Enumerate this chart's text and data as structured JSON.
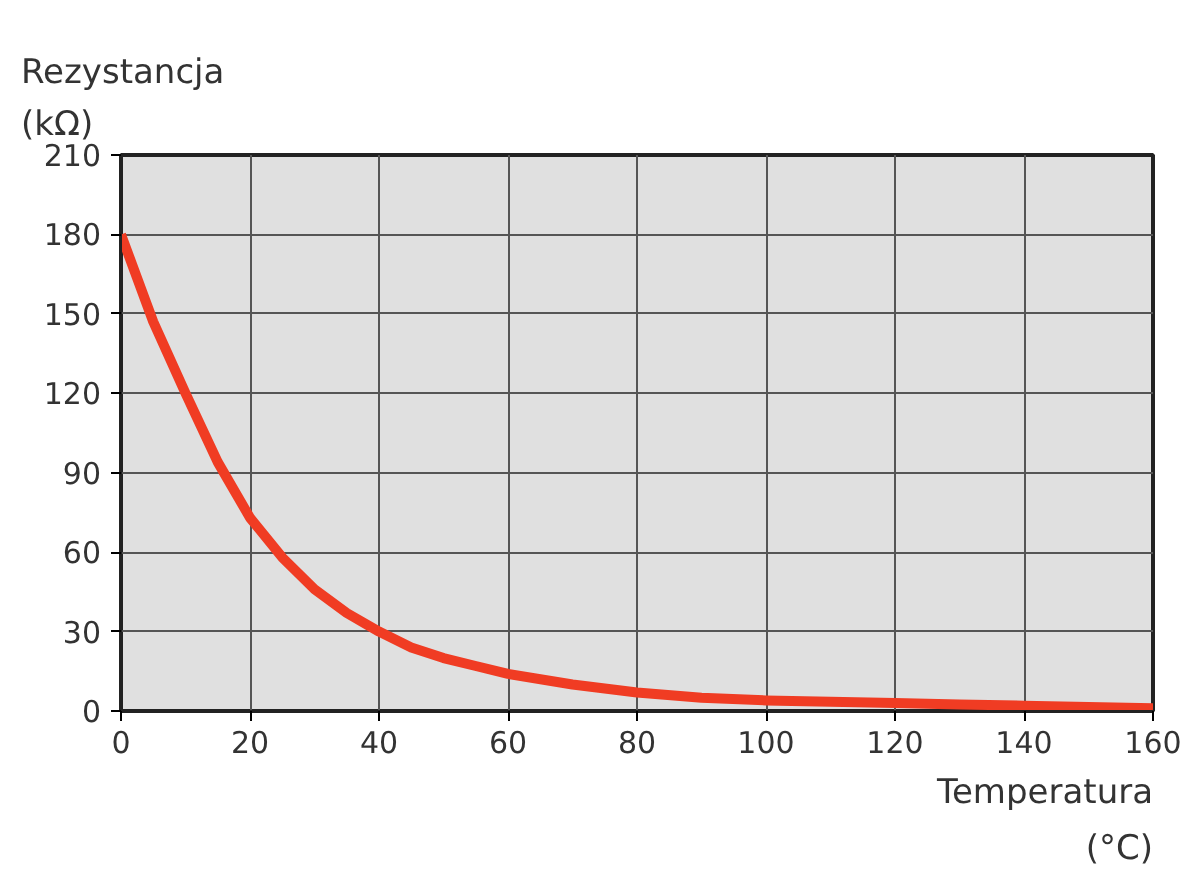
{
  "chart_data": {
    "type": "line",
    "ylabel": "Rezystancja\n(kΩ)",
    "xlabel": "Temperatura\n(°C)",
    "x": [
      0,
      5,
      10,
      15,
      20,
      25,
      30,
      35,
      40,
      45,
      50,
      55,
      60,
      70,
      80,
      90,
      100,
      110,
      120,
      130,
      140,
      150,
      160
    ],
    "series": [
      {
        "color": "#f03c23",
        "values": [
          180,
          147,
          120,
          94,
          73,
          58,
          46,
          37,
          30,
          24,
          20,
          17,
          14,
          10,
          7,
          5,
          4,
          3.5,
          3,
          2.5,
          2,
          1.5,
          1
        ]
      }
    ],
    "xlim": [
      0,
      160
    ],
    "xticks": [
      0,
      20,
      40,
      60,
      80,
      100,
      120,
      140,
      160
    ],
    "ylim": [
      0,
      210
    ],
    "yticks": [
      0,
      30,
      60,
      90,
      120,
      150,
      180,
      210
    ],
    "grid": true,
    "marker": "none",
    "line_style": "solid"
  }
}
